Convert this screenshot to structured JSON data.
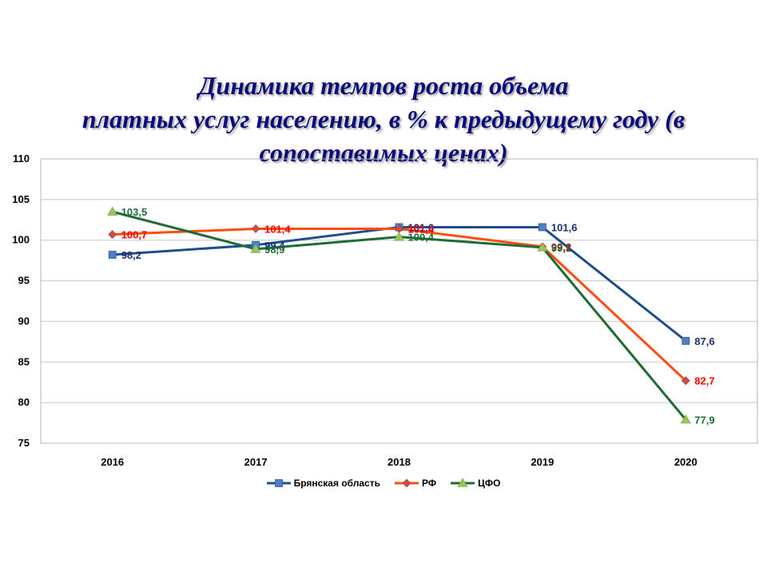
{
  "title_lines": [
    "Динамика темпов роста объема",
    "платных услуг населению, в % к предыдущему году (в",
    "сопоставимых ценах)"
  ],
  "chart_data": {
    "type": "line",
    "title": "Динамика темпов роста объема платных услуг населению, в % к предыдущему году (в сопоставимых ценах)",
    "x": [
      "2016",
      "2017",
      "2018",
      "2019",
      "2020"
    ],
    "ylim": [
      75,
      110
    ],
    "yticks": [
      75,
      80,
      85,
      90,
      95,
      100,
      105,
      110
    ],
    "grid": true,
    "legend": "bottom",
    "series": [
      {
        "name": "Брянская область",
        "color": "#1f4e8c",
        "label_color": "#1a2f78",
        "marker": "square",
        "values": [
          98.2,
          99.4,
          101.6,
          101.6,
          87.6
        ],
        "labels": [
          "98,2",
          "99,4",
          "101,6",
          "101,6",
          "87,6"
        ]
      },
      {
        "name": "РФ",
        "color": "#ff4d12",
        "label_color": "#ff0000",
        "marker": "diamond",
        "values": [
          100.7,
          101.4,
          101.4,
          99.2,
          82.7
        ],
        "labels": [
          "100,7",
          "101,4",
          "101,4",
          "99,2",
          "82,7"
        ]
      },
      {
        "name": "ЦФО",
        "color": "#1e6b34",
        "label_color": "#1e6b34",
        "marker": "triangle",
        "values": [
          103.5,
          98.9,
          100.4,
          99.1,
          77.9
        ],
        "labels": [
          "103,5",
          "98,9",
          "100,4",
          "99,1",
          "77,9"
        ]
      }
    ]
  }
}
